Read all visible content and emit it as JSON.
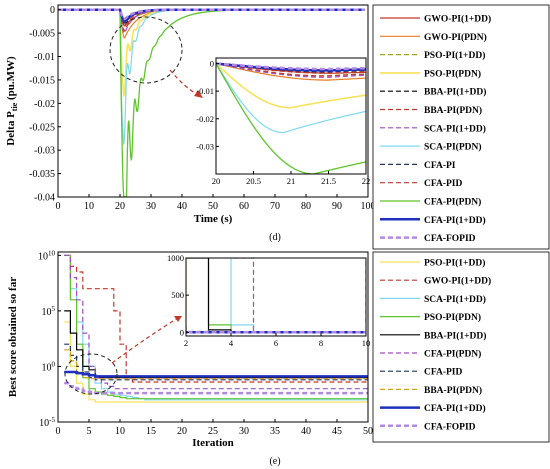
{
  "chart_data": [
    {
      "type": "line",
      "caption": "(d)",
      "xlabel": "Time (s)",
      "ylabel_main": "Delta P",
      "ylabel_sub": "tie",
      "ylabel_unit": " (pu.MW)",
      "xlim": [
        0,
        100
      ],
      "ylim": [
        -0.04,
        0.001
      ],
      "xticks": [
        "0",
        "10",
        "20",
        "30",
        "40",
        "50",
        "60",
        "70",
        "80",
        "90",
        "100"
      ],
      "yticks": [
        "0",
        "-0.005",
        "-0.01",
        "-0.015",
        "-0.02",
        "-0.025",
        "-0.03",
        "-0.035",
        "-0.04"
      ],
      "legend_placement": "outside-right",
      "grid": false,
      "series": [
        {
          "name": "GWO-PI(1+DD)",
          "color": "#c0392b",
          "style": "solid",
          "width": 1.2,
          "dip": -0.0035,
          "tmin": 21.6,
          "tau": 4
        },
        {
          "name": "GWO-PI(PDN)",
          "color": "#e67e22",
          "style": "solid",
          "width": 1.2,
          "dip": -0.006,
          "tmin": 21.5,
          "tau": 4
        },
        {
          "name": "PSO-PI(1+DD)",
          "color": "#9aab1f",
          "style": "dashed",
          "width": 1.2,
          "dip": -0.0045,
          "tmin": 21.4,
          "tau": 3.5
        },
        {
          "name": "PSO-PI(PDN)",
          "color": "#f7e25c",
          "style": "solid",
          "width": 1.6,
          "dip": -0.016,
          "tmin": 21.0,
          "tau": 3
        },
        {
          "name": "BBA-PI(1+DD)",
          "color": "#000000",
          "style": "dashed",
          "width": 1.2,
          "dip": -0.003,
          "tmin": 21.5,
          "tau": 3
        },
        {
          "name": "BBA-PI(PDN)",
          "color": "#c0392b",
          "style": "dashed",
          "width": 1.2,
          "dip": -0.0045,
          "tmin": 21.5,
          "tau": 3
        },
        {
          "name": "SCA-PI(1+DD)",
          "color": "#a04cc4",
          "style": "dashed",
          "width": 1.2,
          "dip": -0.005,
          "tmin": 21.5,
          "tau": 3
        },
        {
          "name": "SCA-PI(PDN)",
          "color": "#7fd8f0",
          "style": "solid",
          "width": 1.2,
          "dip": -0.025,
          "tmin": 20.9,
          "tau": 3
        },
        {
          "name": "CFA-PI",
          "color": "#223366",
          "style": "dashed",
          "width": 1.2,
          "dip": -0.003,
          "tmin": 21.5,
          "tau": 3
        },
        {
          "name": "CFA-PID",
          "color": "#c0392b",
          "style": "dashed",
          "width": 1.2,
          "dip": -0.0035,
          "tmin": 21.5,
          "tau": 3
        },
        {
          "name": "CFA-PI(PDN)",
          "color": "#5fc42c",
          "style": "solid",
          "width": 1.3,
          "dip": -0.04,
          "tmin": 21.3,
          "tau": 6
        },
        {
          "name": "CFA-PI(1+DD)",
          "color": "#1f2fbf",
          "style": "solid",
          "width": 2.5,
          "dip": -0.0025,
          "tmin": 21.5,
          "tau": 3
        },
        {
          "name": "CFA-FOPID",
          "color": "#b28ae6",
          "style": "dashed",
          "width": 2.5,
          "dip": -0.002,
          "tmin": 21.5,
          "tau": 3
        }
      ],
      "inset": {
        "xlim": [
          20,
          22
        ],
        "ylim": [
          -0.04,
          0.002
        ],
        "xticks": [
          "20",
          "20.5",
          "21",
          "21.5",
          "22"
        ],
        "yticks": [
          "0",
          "-0.01",
          "-0.02",
          "-0.03"
        ]
      }
    },
    {
      "type": "line",
      "caption": "(e)",
      "xlabel": "Iteration",
      "ylabel": "Best score obtained so far",
      "yscale": "log",
      "xlim": [
        0,
        50
      ],
      "ylim_exp": [
        -5,
        10.3
      ],
      "xticks": [
        "0",
        "5",
        "10",
        "15",
        "20",
        "25",
        "30",
        "35",
        "40",
        "45",
        "50"
      ],
      "yticks": [
        {
          "base": "10",
          "exp": "10",
          "value": 10
        },
        {
          "base": "10",
          "exp": "5",
          "value": 5
        },
        {
          "base": "10",
          "exp": "0",
          "value": 0
        },
        {
          "base": "10",
          "exp": "-5",
          "value": -5
        }
      ],
      "legend_placement": "outside-right",
      "grid": false,
      "series": [
        {
          "name": "PSO-PI(1+DD)",
          "color": "#f7e25c",
          "style": "solid",
          "width": 1.2,
          "log_values": [
            4,
            0,
            -1.5,
            -2.5,
            -3,
            -3.2,
            -3.2,
            -3.2,
            -3.2,
            -3.2,
            -3.2,
            -3.2,
            -3.2,
            -3.2,
            -3.2,
            -3.2,
            -3.2,
            -3.2,
            -3.2,
            -3.2,
            -3.2,
            -3.2,
            -3.2,
            -3.2,
            -3.2,
            -3.2,
            -3.2,
            -3.2,
            -3.2,
            -3.2,
            -3.2,
            -3.2,
            -3.2,
            -3.2,
            -3.2,
            -3.2,
            -3.2,
            -3.2,
            -3.2,
            -3.2,
            -3.2,
            -3.2,
            -3.2,
            -3.2,
            -3.2,
            -3.2,
            -3.2,
            -3.2,
            -3.2,
            -3.2
          ]
        },
        {
          "name": "GWO-PI(1+DD)",
          "color": "#c0392b",
          "style": "dashed",
          "width": 1.2,
          "log_values": [
            10,
            9,
            8.5,
            7,
            7,
            7,
            7,
            7,
            5,
            2,
            -1,
            -1.4,
            -1.4,
            -1.4,
            -1.4,
            -1.4,
            -1.4,
            -1.4,
            -1.4,
            -1.4,
            -1.4,
            -1.4,
            -1.4,
            -1.4,
            -1.4,
            -1.4,
            -1.4,
            -1.4,
            -1.4,
            -1.4,
            -1.4,
            -1.4,
            -1.4,
            -1.4,
            -1.4,
            -1.4,
            -1.4,
            -1.4,
            -1.4,
            -1.4,
            -1.4,
            -1.4,
            -1.4,
            -1.4,
            -1.4,
            -1.4,
            -1.4,
            -1.4,
            -1.4,
            -1.4
          ]
        },
        {
          "name": "SCA-PI(1+DD)",
          "color": "#7fd8f0",
          "style": "solid",
          "width": 1.2,
          "log_values": [
            10,
            7,
            4,
            2,
            0,
            -1.5,
            -2,
            -2.3,
            -2.5,
            -2.6,
            -2.7,
            -2.8,
            -2.9,
            -3,
            -3,
            -3,
            -3,
            -3,
            -3,
            -3,
            -3,
            -3,
            -3,
            -3,
            -3,
            -3,
            -3,
            -3,
            -3,
            -3,
            -3,
            -3,
            -3,
            -3,
            -3,
            -3,
            -3,
            -3,
            -3,
            -3,
            -3,
            -3,
            -3,
            -3,
            -3,
            -3,
            -3,
            -3,
            -3,
            -3
          ]
        },
        {
          "name": "PSO-PI(PDN)",
          "color": "#5fc42c",
          "style": "solid",
          "width": 1.2,
          "log_values": [
            10,
            6,
            2,
            -1,
            -2,
            -2.3,
            -2.5,
            -2.6,
            -2.7,
            -2.8,
            -2.9,
            -2.9,
            -2.9,
            -2.9,
            -2.9,
            -2.9,
            -2.9,
            -2.9,
            -2.9,
            -2.9,
            -2.9,
            -2.9,
            -2.9,
            -2.9,
            -2.9,
            -2.9,
            -2.9,
            -2.9,
            -2.9,
            -2.9,
            -2.9,
            -2.9,
            -2.9,
            -2.9,
            -2.9,
            -2.9,
            -2.9,
            -2.9,
            -2.9,
            -2.9,
            -2.9,
            -2.9,
            -2.9,
            -2.9,
            -2.9,
            -2.9,
            -2.9,
            -2.9,
            -2.9,
            -2.9
          ]
        },
        {
          "name": "BBA-PI(1+DD)",
          "color": "#000000",
          "style": "solid",
          "width": 1.2,
          "log_values": [
            5,
            3,
            1.5,
            0,
            -0.3,
            -1,
            -1,
            -1,
            -1,
            -1,
            -1,
            -1,
            -1,
            -1,
            -1,
            -1,
            -1,
            -1,
            -1,
            -1,
            -1,
            -1,
            -1,
            -1,
            -1,
            -1,
            -1,
            -1,
            -1,
            -1,
            -1,
            -1,
            -1,
            -1,
            -1,
            -1,
            -1,
            -1,
            -1,
            -1,
            -1,
            -1,
            -1,
            -1,
            -1,
            -1,
            -1,
            -1,
            -1,
            -1
          ]
        },
        {
          "name": "CFA-PI(PDN)",
          "color": "#a04cc4",
          "style": "dashed",
          "width": 1.2,
          "log_values": [
            10,
            8,
            6,
            3,
            0,
            -1,
            -1.5,
            -1.8,
            -2,
            -2,
            -2,
            -2,
            -2,
            -2,
            -2,
            -2,
            -2,
            -2,
            -2,
            -2,
            -2,
            -2,
            -2,
            -2,
            -2,
            -2,
            -2,
            -2,
            -2,
            -2,
            -2,
            -2,
            -2,
            -2,
            -2,
            -2,
            -2,
            -2,
            -2,
            -2,
            -2,
            -2,
            -2,
            -2,
            -2,
            -2,
            -2,
            -2,
            -2,
            -2
          ]
        },
        {
          "name": "CFA-PID",
          "color": "#223366",
          "style": "dashed",
          "width": 1.2,
          "log_values": [
            2,
            1,
            0,
            -0.5,
            -1,
            -1.2,
            -1.2,
            -1.2,
            -1.2,
            -1.2,
            -1.2,
            -1.2,
            -1.2,
            -1.2,
            -1.2,
            -1.2,
            -1.2,
            -1.2,
            -1.2,
            -1.2,
            -1.2,
            -1.2,
            -1.2,
            -1.2,
            -1.2,
            -1.2,
            -1.2,
            -1.2,
            -1.2,
            -1.2,
            -1.2,
            -1.2,
            -1.2,
            -1.2,
            -1.2,
            -1.2,
            -1.2,
            -1.2,
            -1.2,
            -1.2,
            -1.2,
            -1.2,
            -1.2,
            -1.2,
            -1.2,
            -1.2,
            -1.2,
            -1.2,
            -1.2,
            -1.2
          ]
        },
        {
          "name": "BBA-PI(PDN)",
          "color": "#d4a017",
          "style": "dashed",
          "width": 1.2,
          "log_values": [
            1.5,
            0.5,
            -0.5,
            -1,
            -1.1,
            -1.1,
            -1.1,
            -1.1,
            -1.1,
            -1.1,
            -1.1,
            -1.1,
            -1.1,
            -1.1,
            -1.1,
            -1.1,
            -1.1,
            -1.1,
            -1.1,
            -1.1,
            -1.1,
            -1.1,
            -1.1,
            -1.1,
            -1.1,
            -1.1,
            -1.1,
            -1.1,
            -1.1,
            -1.1,
            -1.1,
            -1.1,
            -1.1,
            -1.1,
            -1.1,
            -1.1,
            -1.1,
            -1.1,
            -1.1,
            -1.1,
            -1.1,
            -1.1,
            -1.1,
            -1.1,
            -1.1,
            -1.1,
            -1.1,
            -1.1,
            -1.1,
            -1.1
          ]
        },
        {
          "name": "CFA-PI(1+DD)",
          "color": "#1f2fbf",
          "style": "solid",
          "width": 2.5,
          "log_values": [
            -0.5,
            -0.5,
            -0.6,
            -0.7,
            -0.8,
            -0.9,
            -0.9,
            -0.9,
            -0.9,
            -0.9,
            -0.9,
            -0.9,
            -0.9,
            -0.9,
            -0.9,
            -0.9,
            -0.9,
            -0.9,
            -0.9,
            -0.9,
            -0.9,
            -0.9,
            -0.9,
            -0.9,
            -0.9,
            -0.9,
            -0.9,
            -0.9,
            -0.9,
            -0.9,
            -0.9,
            -0.9,
            -0.9,
            -0.9,
            -0.9,
            -0.9,
            -0.9,
            -0.9,
            -0.9,
            -0.9,
            -0.9,
            -0.9,
            -0.9,
            -0.9,
            -0.9,
            -0.9,
            -0.9,
            -0.9,
            -0.9,
            -0.9
          ]
        },
        {
          "name": "CFA-FOPID",
          "color": "#b28ae6",
          "style": "dashed",
          "width": 2.5,
          "log_values": [
            -1.5,
            -1.8,
            -2,
            -2.2,
            -2.3,
            -2.4,
            -2.4,
            -2.4,
            -2.4,
            -2.4,
            -2.4,
            -2.4,
            -2.4,
            -2.4,
            -2.4,
            -2.4,
            -2.4,
            -2.4,
            -2.4,
            -2.4,
            -2.4,
            -2.4,
            -2.4,
            -2.4,
            -2.4,
            -2.4,
            -2.4,
            -2.4,
            -2.4,
            -2.4,
            -2.4,
            -2.4,
            -2.4,
            -2.4,
            -2.4,
            -2.4,
            -2.4,
            -2.4,
            -2.4,
            -2.4,
            -2.4,
            -2.4,
            -2.4,
            -2.4,
            -2.4,
            -2.4,
            -2.4,
            -2.4,
            -2.4,
            -2.4
          ]
        }
      ],
      "inset": {
        "xlim": [
          2,
          10
        ],
        "ylim": [
          -50,
          1000
        ],
        "xticks": [
          "2",
          "4",
          "6",
          "8",
          "10"
        ],
        "yticks": [
          "0",
          "500",
          "1000"
        ]
      }
    }
  ]
}
